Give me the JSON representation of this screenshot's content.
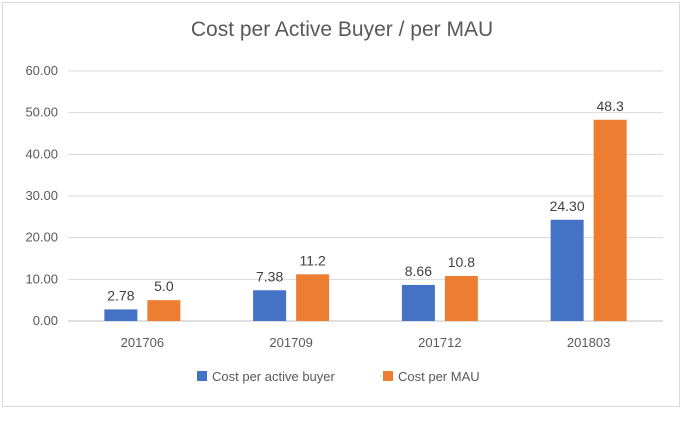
{
  "chart_data": {
    "type": "bar",
    "title": "Cost per Active Buyer / per MAU",
    "categories": [
      "201706",
      "201709",
      "201712",
      "201803"
    ],
    "series": [
      {
        "name": "Cost per active buyer",
        "values": [
          2.78,
          7.38,
          8.66,
          24.3
        ],
        "labels": [
          "2.78",
          "7.38",
          "8.66",
          "24.30"
        ],
        "color": "#4472c4"
      },
      {
        "name": "Cost per MAU",
        "values": [
          5.0,
          11.2,
          10.8,
          48.3
        ],
        "labels": [
          "5.0",
          "11.2",
          "10.8",
          "48.3"
        ],
        "color": "#ed7d31"
      }
    ],
    "yticks": [
      "0.00",
      "10.00",
      "20.00",
      "30.00",
      "40.00",
      "50.00",
      "60.00"
    ],
    "ylim": [
      0,
      60
    ],
    "grid": true,
    "legend_position": "bottom"
  }
}
